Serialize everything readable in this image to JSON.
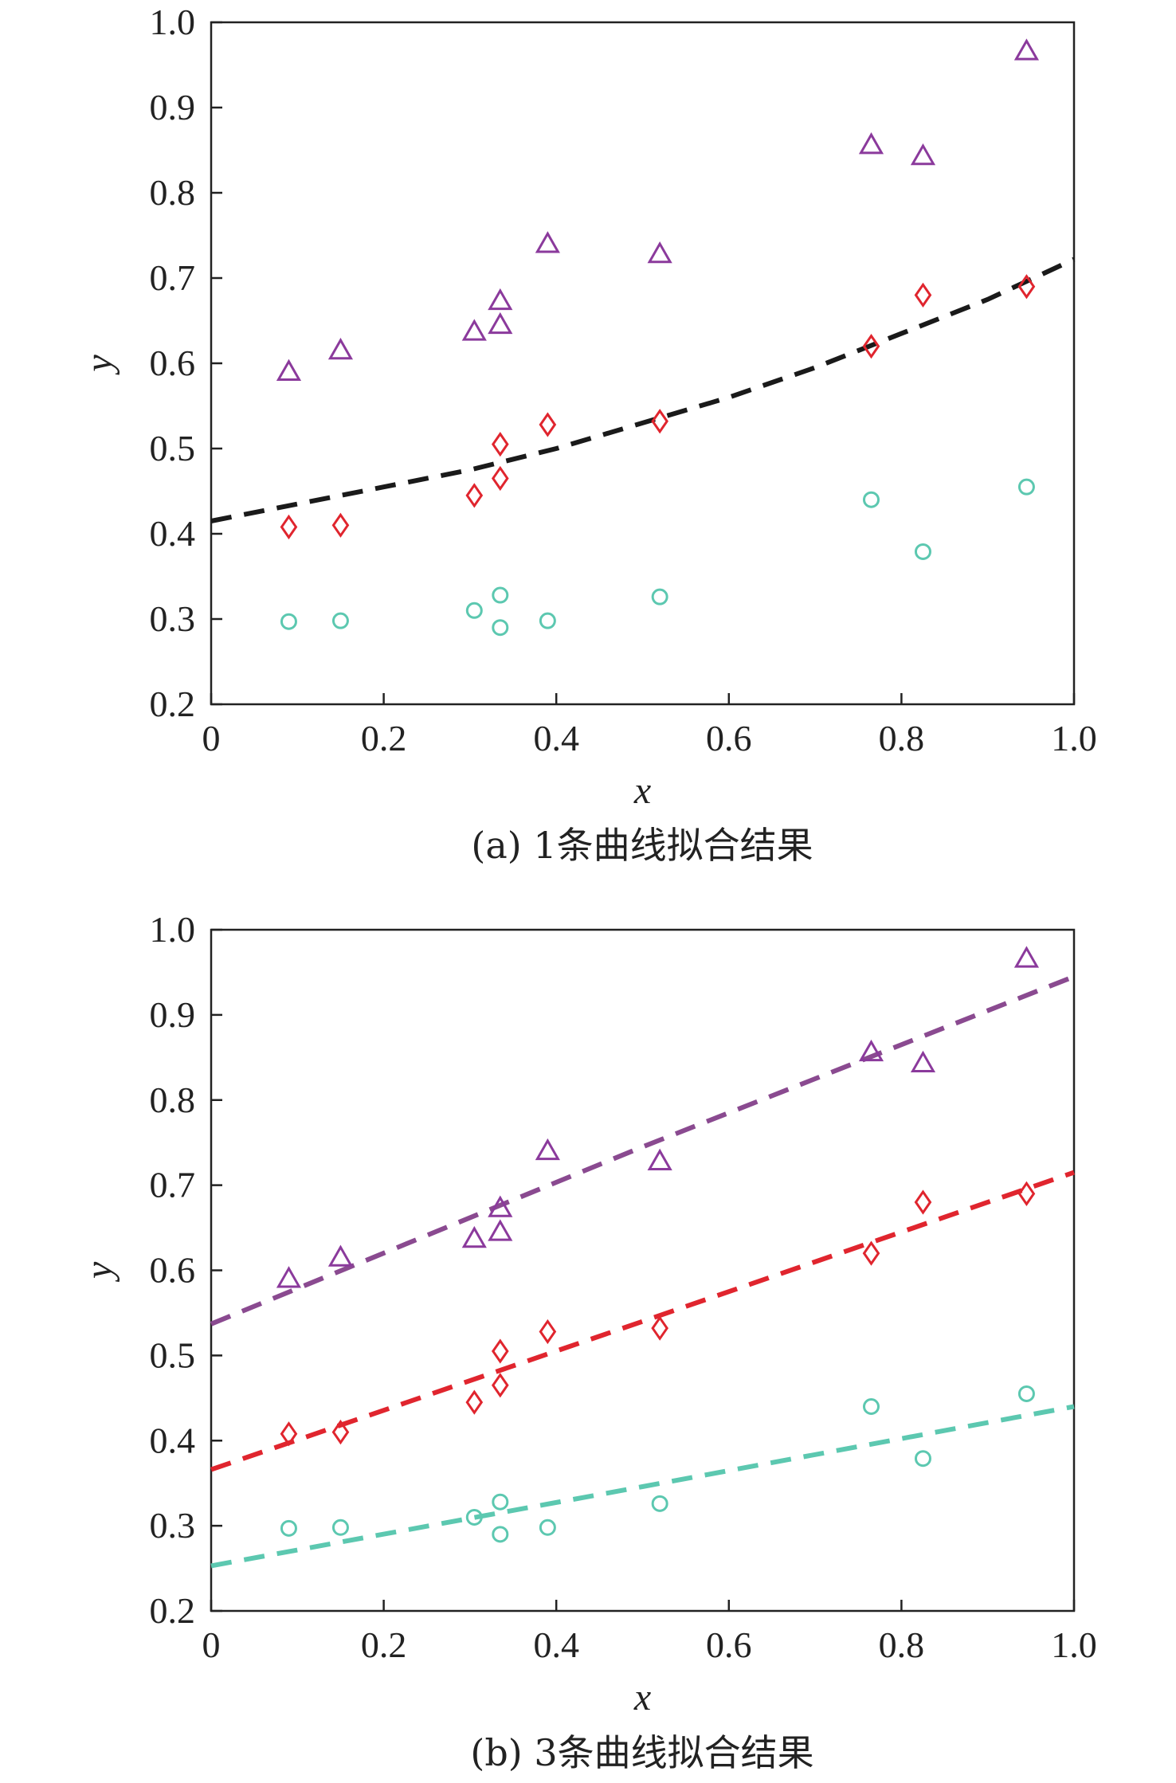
{
  "colors": {
    "triangle": "#8B3A9C",
    "diamond": "#E0252E",
    "circle": "#5CC8B0",
    "fit_single": "#1a1a1a",
    "fit_upper": "#8A4A90",
    "fit_middle": "#E0252E",
    "fit_lower": "#5CC8B0"
  },
  "chart_data": [
    {
      "type": "scatter",
      "caption": "(a) 1条曲线拟合结果",
      "xlabel": "x",
      "ylabel": "y",
      "xlim": [
        0,
        1.0
      ],
      "ylim": [
        0.2,
        1.0
      ],
      "xticks": [
        "0",
        "0.2",
        "0.4",
        "0.6",
        "0.8",
        "1.0"
      ],
      "yticks": [
        "0.2",
        "0.3",
        "0.4",
        "0.5",
        "0.6",
        "0.7",
        "0.8",
        "0.9",
        "1.0"
      ],
      "grid": false,
      "series": [
        {
          "marker": "triangle",
          "x": [
            0.09,
            0.15,
            0.305,
            0.335,
            0.335,
            0.39,
            0.52,
            0.765,
            0.825,
            0.945
          ],
          "y": [
            0.59,
            0.615,
            0.637,
            0.645,
            0.673,
            0.74,
            0.728,
            0.856,
            0.843,
            0.966
          ]
        },
        {
          "marker": "diamond",
          "x": [
            0.09,
            0.15,
            0.305,
            0.335,
            0.335,
            0.39,
            0.52,
            0.765,
            0.825,
            0.945
          ],
          "y": [
            0.408,
            0.41,
            0.445,
            0.465,
            0.505,
            0.528,
            0.532,
            0.62,
            0.68,
            0.69
          ]
        },
        {
          "marker": "circle",
          "x": [
            0.09,
            0.15,
            0.305,
            0.335,
            0.335,
            0.39,
            0.52,
            0.765,
            0.825,
            0.945
          ],
          "y": [
            0.297,
            0.298,
            0.31,
            0.29,
            0.328,
            0.298,
            0.326,
            0.44,
            0.379,
            0.455
          ]
        }
      ],
      "fits": [
        {
          "style": "dashed",
          "color_key": "fit_single",
          "x": [
            0,
            0.1,
            0.2,
            0.3,
            0.4,
            0.5,
            0.6,
            0.7,
            0.8,
            0.9,
            1.0
          ],
          "y": [
            0.415,
            0.435,
            0.455,
            0.475,
            0.5,
            0.53,
            0.56,
            0.595,
            0.635,
            0.675,
            0.722
          ]
        }
      ]
    },
    {
      "type": "scatter",
      "caption": "(b) 3条曲线拟合结果",
      "xlabel": "x",
      "ylabel": "y",
      "xlim": [
        0,
        1.0
      ],
      "ylim": [
        0.2,
        1.0
      ],
      "xticks": [
        "0",
        "0.2",
        "0.4",
        "0.6",
        "0.8",
        "1.0"
      ],
      "yticks": [
        "0.2",
        "0.3",
        "0.4",
        "0.5",
        "0.6",
        "0.7",
        "0.8",
        "0.9",
        "1.0"
      ],
      "grid": false,
      "series": [
        {
          "marker": "triangle",
          "x": [
            0.09,
            0.15,
            0.305,
            0.335,
            0.335,
            0.39,
            0.52,
            0.765,
            0.825,
            0.945
          ],
          "y": [
            0.59,
            0.615,
            0.637,
            0.645,
            0.673,
            0.74,
            0.728,
            0.856,
            0.843,
            0.966
          ]
        },
        {
          "marker": "diamond",
          "x": [
            0.09,
            0.15,
            0.305,
            0.335,
            0.335,
            0.39,
            0.52,
            0.765,
            0.825,
            0.945
          ],
          "y": [
            0.408,
            0.41,
            0.445,
            0.465,
            0.505,
            0.528,
            0.532,
            0.62,
            0.68,
            0.69
          ]
        },
        {
          "marker": "circle",
          "x": [
            0.09,
            0.15,
            0.305,
            0.335,
            0.335,
            0.39,
            0.52,
            0.765,
            0.825,
            0.945
          ],
          "y": [
            0.297,
            0.298,
            0.31,
            0.29,
            0.328,
            0.298,
            0.326,
            0.44,
            0.379,
            0.455
          ]
        }
      ],
      "fits": [
        {
          "style": "dashed",
          "color_key": "fit_upper",
          "x": [
            0,
            0.5,
            1.0
          ],
          "y": [
            0.537,
            0.745,
            0.945
          ]
        },
        {
          "style": "dashed",
          "color_key": "fit_middle",
          "x": [
            0,
            0.5,
            1.0
          ],
          "y": [
            0.366,
            0.54,
            0.715
          ]
        },
        {
          "style": "dashed",
          "color_key": "fit_lower",
          "x": [
            0,
            0.5,
            1.0
          ],
          "y": [
            0.253,
            0.346,
            0.44
          ]
        }
      ]
    }
  ]
}
